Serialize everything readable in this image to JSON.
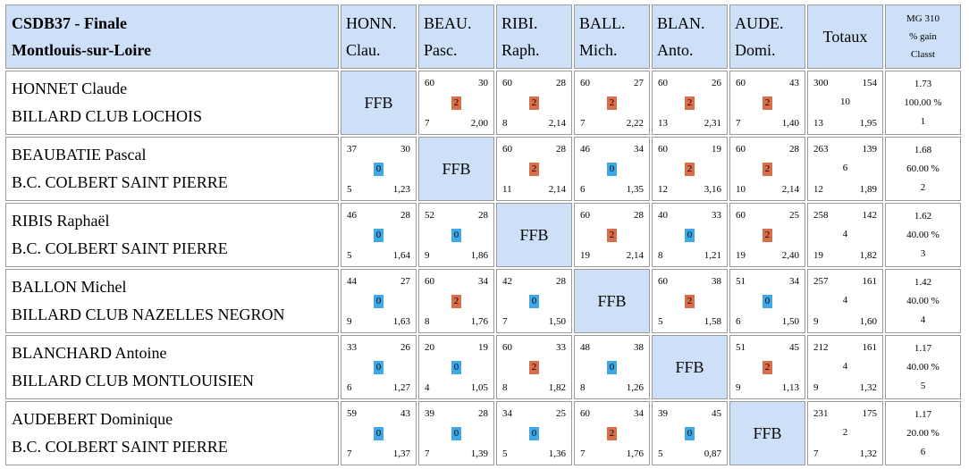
{
  "header": {
    "title": "CSDB37 - Finale",
    "subtitle": "Montlouis-sur-Loire",
    "columns": [
      {
        "abbr": "HONN.",
        "first": "Clau."
      },
      {
        "abbr": "BEAU.",
        "first": "Pasc."
      },
      {
        "abbr": "RIBI.",
        "first": "Raph."
      },
      {
        "abbr": "BALL.",
        "first": "Mich."
      },
      {
        "abbr": "BLAN.",
        "first": "Anto."
      },
      {
        "abbr": "AUDE.",
        "first": "Domi."
      }
    ],
    "totals_label": "Totaux",
    "mg_label": "MG 310",
    "gain_label": "% gain",
    "rank_label": "Classt"
  },
  "ffb_label": "FFB",
  "colors": {
    "header_bg": "#cde0f7",
    "win": "#d86f4a",
    "loss": "#3fa9e8"
  },
  "players": [
    {
      "name": "HONNET Claude",
      "club": "BILLARD CLUB LOCHOIS",
      "matches": [
        null,
        {
          "tl": "60",
          "tr": "30",
          "pts": "2",
          "bl": "7",
          "br": "2,00"
        },
        {
          "tl": "60",
          "tr": "28",
          "pts": "2",
          "bl": "8",
          "br": "2,14"
        },
        {
          "tl": "60",
          "tr": "27",
          "pts": "2",
          "bl": "7",
          "br": "2,22"
        },
        {
          "tl": "60",
          "tr": "26",
          "pts": "2",
          "bl": "13",
          "br": "2,31"
        },
        {
          "tl": "60",
          "tr": "43",
          "pts": "2",
          "bl": "7",
          "br": "1,40"
        }
      ],
      "totals": {
        "points": "300",
        "opp": "154",
        "pts": "10",
        "innings": "13",
        "avg": "1,95"
      },
      "mg": "1.73",
      "gain": "100.00 %",
      "rank": "1"
    },
    {
      "name": "BEAUBATIE Pascal",
      "club": "B.C. COLBERT SAINT PIERRE",
      "matches": [
        {
          "tl": "37",
          "tr": "30",
          "pts": "0",
          "bl": "5",
          "br": "1,23"
        },
        null,
        {
          "tl": "60",
          "tr": "28",
          "pts": "2",
          "bl": "11",
          "br": "2,14"
        },
        {
          "tl": "46",
          "tr": "34",
          "pts": "0",
          "bl": "6",
          "br": "1,35"
        },
        {
          "tl": "60",
          "tr": "19",
          "pts": "2",
          "bl": "12",
          "br": "3,16"
        },
        {
          "tl": "60",
          "tr": "28",
          "pts": "2",
          "bl": "10",
          "br": "2,14"
        }
      ],
      "totals": {
        "points": "263",
        "opp": "139",
        "pts": "6",
        "innings": "12",
        "avg": "1,89"
      },
      "mg": "1.68",
      "gain": "60.00 %",
      "rank": "2"
    },
    {
      "name": "RIBIS Raphaël",
      "club": "B.C. COLBERT SAINT PIERRE",
      "matches": [
        {
          "tl": "46",
          "tr": "28",
          "pts": "0",
          "bl": "5",
          "br": "1,64"
        },
        {
          "tl": "52",
          "tr": "28",
          "pts": "0",
          "bl": "9",
          "br": "1,86"
        },
        null,
        {
          "tl": "60",
          "tr": "28",
          "pts": "2",
          "bl": "19",
          "br": "2,14"
        },
        {
          "tl": "40",
          "tr": "33",
          "pts": "0",
          "bl": "8",
          "br": "1,21"
        },
        {
          "tl": "60",
          "tr": "25",
          "pts": "2",
          "bl": "19",
          "br": "2,40"
        }
      ],
      "totals": {
        "points": "258",
        "opp": "142",
        "pts": "4",
        "innings": "19",
        "avg": "1,82"
      },
      "mg": "1.62",
      "gain": "40.00 %",
      "rank": "3"
    },
    {
      "name": "BALLON Michel",
      "club": "BILLARD CLUB NAZELLES NEGRON",
      "matches": [
        {
          "tl": "44",
          "tr": "27",
          "pts": "0",
          "bl": "9",
          "br": "1,63"
        },
        {
          "tl": "60",
          "tr": "34",
          "pts": "2",
          "bl": "8",
          "br": "1,76"
        },
        {
          "tl": "42",
          "tr": "28",
          "pts": "0",
          "bl": "7",
          "br": "1,50"
        },
        null,
        {
          "tl": "60",
          "tr": "38",
          "pts": "2",
          "bl": "5",
          "br": "1,58"
        },
        {
          "tl": "51",
          "tr": "34",
          "pts": "0",
          "bl": "6",
          "br": "1,50"
        }
      ],
      "totals": {
        "points": "257",
        "opp": "161",
        "pts": "4",
        "innings": "9",
        "avg": "1,60"
      },
      "mg": "1.42",
      "gain": "40.00 %",
      "rank": "4"
    },
    {
      "name": "BLANCHARD Antoine",
      "club": "BILLARD CLUB MONTLOUISIEN",
      "matches": [
        {
          "tl": "33",
          "tr": "26",
          "pts": "0",
          "bl": "6",
          "br": "1,27"
        },
        {
          "tl": "20",
          "tr": "19",
          "pts": "0",
          "bl": "4",
          "br": "1,05"
        },
        {
          "tl": "60",
          "tr": "33",
          "pts": "2",
          "bl": "8",
          "br": "1,82"
        },
        {
          "tl": "48",
          "tr": "38",
          "pts": "0",
          "bl": "8",
          "br": "1,26"
        },
        null,
        {
          "tl": "51",
          "tr": "45",
          "pts": "2",
          "bl": "9",
          "br": "1,13"
        }
      ],
      "totals": {
        "points": "212",
        "opp": "161",
        "pts": "4",
        "innings": "9",
        "avg": "1,32"
      },
      "mg": "1.17",
      "gain": "40.00 %",
      "rank": "5"
    },
    {
      "name": "AUDEBERT Dominique",
      "club": "B.C. COLBERT SAINT PIERRE",
      "matches": [
        {
          "tl": "59",
          "tr": "43",
          "pts": "0",
          "bl": "7",
          "br": "1,37"
        },
        {
          "tl": "39",
          "tr": "28",
          "pts": "0",
          "bl": "7",
          "br": "1,39"
        },
        {
          "tl": "34",
          "tr": "25",
          "pts": "0",
          "bl": "5",
          "br": "1,36"
        },
        {
          "tl": "60",
          "tr": "34",
          "pts": "2",
          "bl": "7",
          "br": "1,76"
        },
        {
          "tl": "39",
          "tr": "45",
          "pts": "0",
          "bl": "5",
          "br": "0,87"
        },
        null
      ],
      "totals": {
        "points": "231",
        "opp": "175",
        "pts": "2",
        "innings": "7",
        "avg": "1,32"
      },
      "mg": "1.17",
      "gain": "20.00 %",
      "rank": "6"
    }
  ]
}
